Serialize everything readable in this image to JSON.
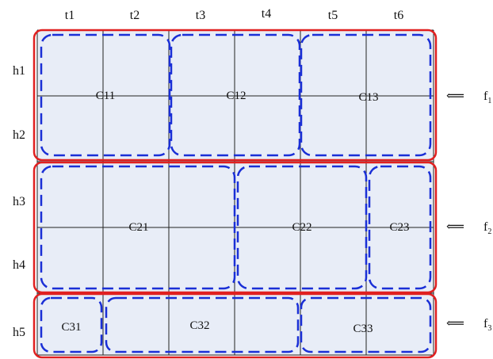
{
  "columns": [
    "t1",
    "t2",
    "t3",
    "t4",
    "t5",
    "t6"
  ],
  "rows": [
    "h1",
    "h2",
    "h3",
    "h4",
    "h5"
  ],
  "groups": [
    {
      "flag": "f",
      "flag_sub": "1",
      "clusters": [
        "C11",
        "C12",
        "C13"
      ]
    },
    {
      "flag": "f",
      "flag_sub": "2",
      "clusters": [
        "C21",
        "C22",
        "C23"
      ]
    },
    {
      "flag": "f",
      "flag_sub": "3",
      "clusters": [
        "C31",
        "C32",
        "C33"
      ]
    }
  ],
  "arrow_glyph": "⟸",
  "colors": {
    "grid_fill": "#e8edf7",
    "grid_line": "#222222",
    "group_border": "#e02020",
    "cluster_border": "#1a2fd6"
  }
}
